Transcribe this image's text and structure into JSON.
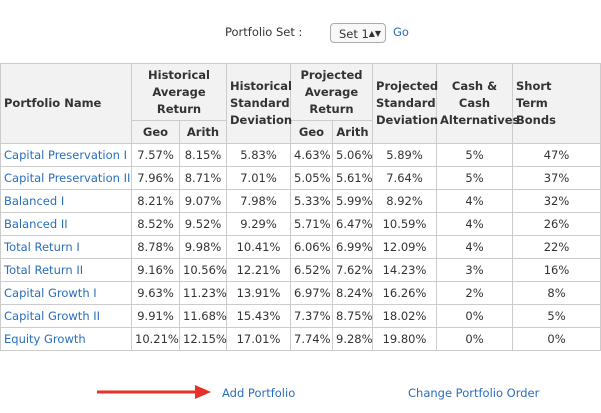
{
  "controls": {
    "set_label": "Portfolio Set :",
    "set_value": "Set 1",
    "go": "Go"
  },
  "table": {
    "headers": {
      "name": "Portfolio Name",
      "hist_avg": "Historical Average Return",
      "hist_sd": "Historical Standard Deviation",
      "proj_avg": "Projected Average Return",
      "proj_sd": "Projected Standard Deviation",
      "cash": "Cash & Cash Alternatives",
      "bonds": "Short Term Bonds",
      "geo": "Geo",
      "arith": "Arith"
    },
    "rows": [
      [
        "Capital Preservation I",
        "7.57%",
        "8.15%",
        "5.83%",
        "4.63%",
        "5.06%",
        "5.89%",
        "5%",
        "47%"
      ],
      [
        "Capital Preservation II",
        "7.96%",
        "8.71%",
        "7.01%",
        "5.05%",
        "5.61%",
        "7.64%",
        "5%",
        "37%"
      ],
      [
        "Balanced I",
        "8.21%",
        "9.07%",
        "7.98%",
        "5.33%",
        "5.99%",
        "8.92%",
        "4%",
        "32%"
      ],
      [
        "Balanced II",
        "8.52%",
        "9.52%",
        "9.29%",
        "5.71%",
        "6.47%",
        "10.59%",
        "4%",
        "26%"
      ],
      [
        "Total Return I",
        "8.78%",
        "9.98%",
        "10.41%",
        "6.06%",
        "6.99%",
        "12.09%",
        "4%",
        "22%"
      ],
      [
        "Total Return II",
        "9.16%",
        "10.56%",
        "12.21%",
        "6.52%",
        "7.62%",
        "14.23%",
        "3%",
        "16%"
      ],
      [
        "Capital Growth I",
        "9.63%",
        "11.23%",
        "13.91%",
        "6.97%",
        "8.24%",
        "16.26%",
        "2%",
        "8%"
      ],
      [
        "Capital Growth II",
        "9.91%",
        "11.68%",
        "15.43%",
        "7.37%",
        "8.75%",
        "18.02%",
        "0%",
        "5%"
      ],
      [
        "Equity Growth",
        "10.21%",
        "12.15%",
        "17.01%",
        "7.74%",
        "9.28%",
        "19.80%",
        "0%",
        "0%"
      ]
    ]
  },
  "footer": {
    "add": "Add Portfolio",
    "order": "Change Portfolio Order"
  }
}
